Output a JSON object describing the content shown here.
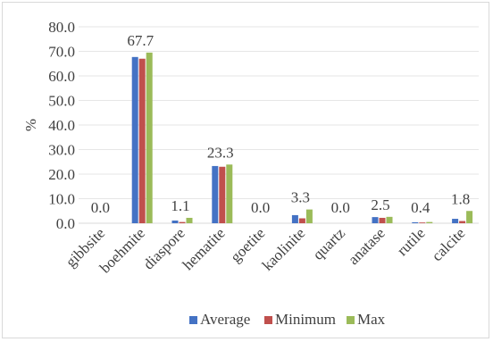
{
  "chart_data": {
    "type": "bar",
    "ylabel": "%",
    "ylim": [
      0,
      80
    ],
    "yticks": [
      "0.0",
      "10.0",
      "20.0",
      "30.0",
      "40.0",
      "50.0",
      "60.0",
      "70.0",
      "80.0"
    ],
    "categories": [
      "gibbsite",
      "boehmite",
      "diaspore",
      "hematite",
      "goetite",
      "kaolinite",
      "quartz",
      "anatase",
      "rutile",
      "calcite"
    ],
    "series": [
      {
        "name": "Average",
        "color": "#4472c4",
        "values": [
          0.0,
          67.7,
          1.1,
          23.3,
          0.0,
          3.3,
          0.0,
          2.5,
          0.4,
          1.8
        ]
      },
      {
        "name": "Minimum",
        "color": "#c0504d",
        "values": [
          0.0,
          67.0,
          0.5,
          23.0,
          0.0,
          2.0,
          0.0,
          2.2,
          0.3,
          0.9
        ]
      },
      {
        "name": "Max",
        "color": "#9bbb59",
        "values": [
          0.0,
          69.5,
          2.2,
          23.9,
          0.0,
          5.6,
          0.0,
          2.6,
          0.5,
          5.0
        ]
      }
    ],
    "data_labels": [
      "0.0",
      "67.7",
      "1.1",
      "23.3",
      "0.0",
      "3.3",
      "0.0",
      "2.5",
      "0.4",
      "1.8"
    ],
    "legend_position": "bottom",
    "grid": true
  }
}
